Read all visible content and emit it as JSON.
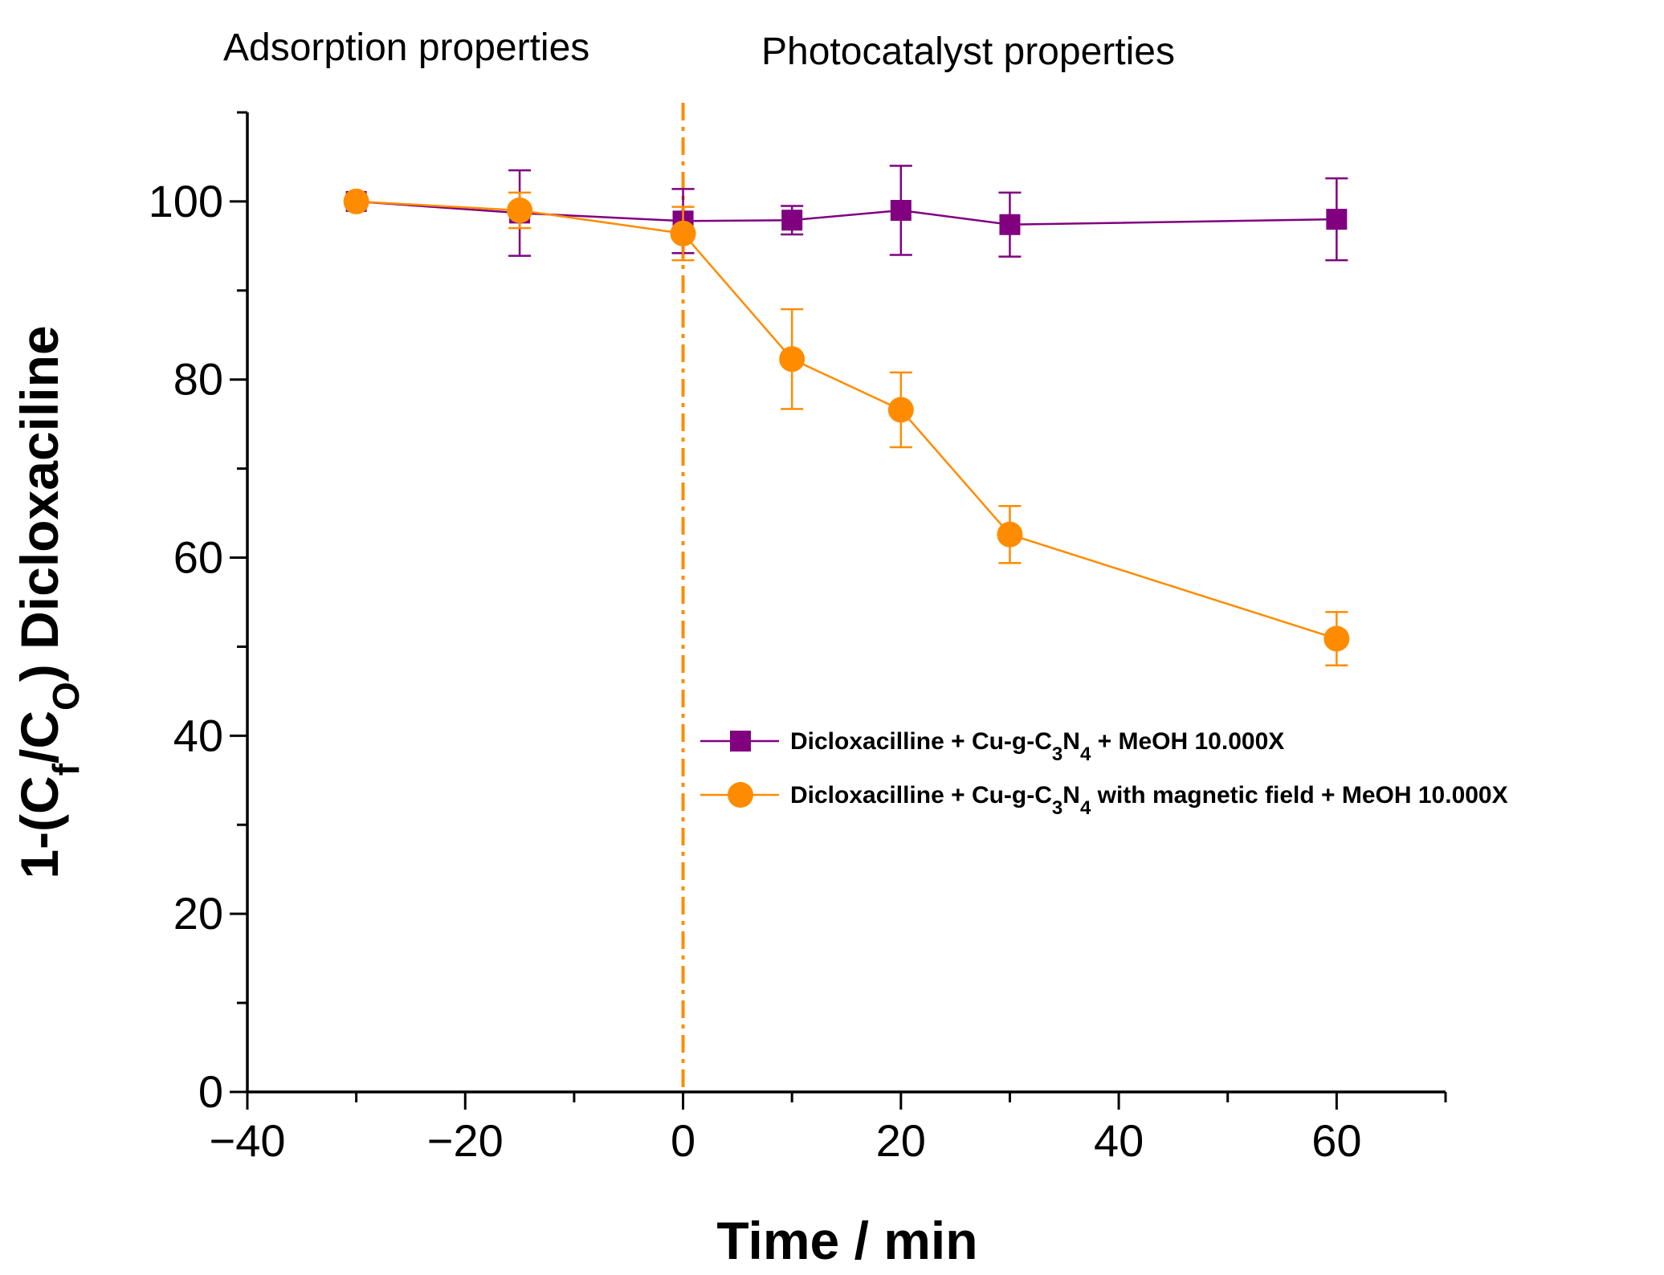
{
  "chart_data": {
    "type": "line",
    "xlabel": "Time / min",
    "ylabel": {
      "pre": "1-(C",
      "sub1": "f",
      "mid": "/C",
      "sub2": "O",
      "post": ") Dicloxaciline"
    },
    "xlim": [
      -40,
      70
    ],
    "ylim": [
      0,
      110
    ],
    "x_ticks": [
      -40,
      -20,
      0,
      20,
      40,
      60
    ],
    "x_tick_labels": [
      "−40",
      "−20",
      "0",
      "20",
      "40",
      "60"
    ],
    "y_ticks": [
      0,
      20,
      40,
      60,
      80,
      100
    ],
    "y_tick_labels": [
      "0",
      "20",
      "40",
      "60",
      "80",
      "100"
    ],
    "x_minor_step": 10,
    "y_minor_step": 10,
    "annotations": {
      "left_region": "Adsorption properties",
      "right_region": "Photocatalyst properties",
      "divider_x": 0
    },
    "series": [
      {
        "name": "Dicloxacilline + Cu-g-C3N4 + MeOH 10.000X",
        "legend_parts": {
          "a": "Dicloxacilline + Cu-g-C",
          "s1": "3",
          "b": "N",
          "s2": "4",
          "c": " + MeOH 10.000X"
        },
        "color": "#800080",
        "marker": "square",
        "x": [
          -30,
          -15,
          0,
          10,
          20,
          30,
          60
        ],
        "y": [
          100,
          98.7,
          97.8,
          97.9,
          99.0,
          97.4,
          98.0
        ],
        "err": [
          0.5,
          4.8,
          3.6,
          1.6,
          5.0,
          3.6,
          4.6
        ]
      },
      {
        "name": "Dicloxacilline + Cu-g-C3N4 with magnetic field + MeOH 10.000X",
        "legend_parts": {
          "a": "Dicloxacilline + Cu-g-C",
          "s1": "3",
          "b": "N",
          "s2": "4",
          "c": " with magnetic field + MeOH 10.000X"
        },
        "color": "#ff8c00",
        "marker": "circle",
        "x": [
          -30,
          -15,
          0,
          10,
          20,
          30,
          60
        ],
        "y": [
          100,
          99.0,
          96.4,
          82.3,
          76.6,
          62.6,
          50.9
        ],
        "err": [
          0.5,
          2.0,
          3.0,
          5.6,
          4.2,
          3.2,
          3.0
        ]
      }
    ],
    "divider_color": "#ff8c00"
  }
}
